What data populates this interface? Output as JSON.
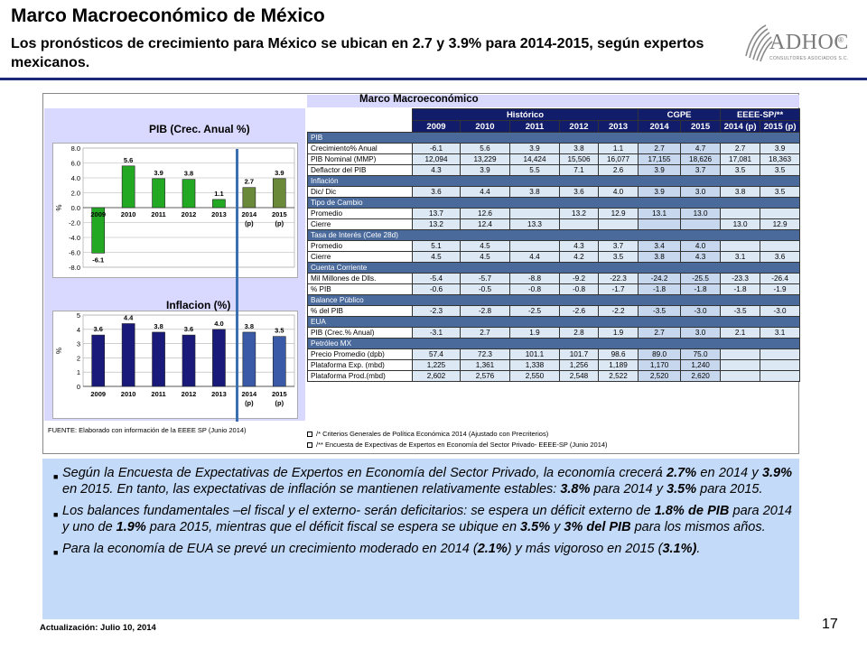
{
  "header": {
    "title": "Marco Macroeconómico de México",
    "subtitle": "Los pronósticos de crecimiento para México se ubican en 2.7 y 3.9% para 2014-2015, según expertos mexicanos."
  },
  "logo": {
    "text": "ADHOC",
    "reg": "®",
    "sub": "CONSULTORES ASOCIADOS S.C."
  },
  "table": {
    "title": "Marco Macroeconómico",
    "group_headers": [
      "Histórico",
      "CGPE",
      "EEEE-SP/**"
    ],
    "years": [
      "2009",
      "2010",
      "2011",
      "2012",
      "2013",
      "2014",
      "2015",
      "2014 (p)",
      "2015 (p)"
    ],
    "sections": [
      {
        "name": "PIB",
        "rows": [
          {
            "label": "Crecimiento% Anual",
            "values": [
              "-6.1",
              "5.6",
              "3.9",
              "3.8",
              "1.1",
              "2.7",
              "4.7",
              "2.7",
              "3.9"
            ]
          },
          {
            "label": "PIB Nominal (MMP)",
            "values": [
              "12,094",
              "13,229",
              "14,424",
              "15,506",
              "16,077",
              "17,155",
              "18,626",
              "17,081",
              "18,363"
            ]
          },
          {
            "label": "Deflactor del PIB",
            "values": [
              "4.3",
              "3.9",
              "5.5",
              "7.1",
              "2.6",
              "3.9",
              "3.7",
              "3.5",
              "3.5"
            ]
          }
        ]
      },
      {
        "name": "Inflación",
        "rows": [
          {
            "label": "Dic/ Dic",
            "values": [
              "3.6",
              "4.4",
              "3.8",
              "3.6",
              "4.0",
              "3.9",
              "3.0",
              "3.8",
              "3.5"
            ]
          }
        ]
      },
      {
        "name": "Tipo de Cambio",
        "rows": [
          {
            "label": "Promedio",
            "values": [
              "13.7",
              "12.6",
              "",
              "13.2",
              "12.9",
              "13.1",
              "13.0",
              "",
              ""
            ]
          },
          {
            "label": "Cierre",
            "values": [
              "13.2",
              "12.4",
              "13.3",
              "",
              "",
              "",
              "",
              "13.0",
              "12.9"
            ]
          }
        ]
      },
      {
        "name": "Tasa de Interés (Cete 28d)",
        "rows": [
          {
            "label": "Promedio",
            "values": [
              "5.1",
              "4.5",
              "",
              "4.3",
              "3.7",
              "3.4",
              "4.0",
              "",
              ""
            ]
          },
          {
            "label": "Cierre",
            "values": [
              "4.5",
              "4.5",
              "4.4",
              "4.2",
              "3.5",
              "3.8",
              "4.3",
              "3.1",
              "3.6"
            ]
          }
        ]
      },
      {
        "name": "Cuenta Corriente",
        "rows": [
          {
            "label": "Mil Millones de Dlls.",
            "values": [
              "-5.4",
              "-5.7",
              "-8.8",
              "-9.2",
              "-22.3",
              "-24.2",
              "-25.5",
              "-23.3",
              "-26.4"
            ]
          },
          {
            "label": "% PIB",
            "values": [
              "-0.6",
              "-0.5",
              "-0.8",
              "-0.8",
              "-1.7",
              "-1.8",
              "-1.8",
              "-1.8",
              "-1.9"
            ]
          }
        ]
      },
      {
        "name": "Balance Público",
        "rows": [
          {
            "label": "% del PIB",
            "values": [
              "-2.3",
              "-2.8",
              "-2.5",
              "-2.6",
              "-2.2",
              "-3.5",
              "-3.0",
              "-3.5",
              "-3.0"
            ]
          }
        ]
      },
      {
        "name": "EUA",
        "rows": [
          {
            "label": "PIB (Crec.% Anual)",
            "values": [
              "-3.1",
              "2.7",
              "1.9",
              "2.8",
              "1.9",
              "2.7",
              "3.0",
              "2.1",
              "3.1"
            ]
          }
        ]
      },
      {
        "name": "Petróleo MX",
        "rows": [
          {
            "label": "Precio Promedio (dpb)",
            "values": [
              "57.4",
              "72.3",
              "101.1",
              "101.7",
              "98.6",
              "89.0",
              "75.0",
              "",
              ""
            ]
          },
          {
            "label": "Plataforma Exp. (mbd)",
            "values": [
              "1,225",
              "1,361",
              "1,338",
              "1,256",
              "1,189",
              "1,170",
              "1,240",
              "",
              ""
            ]
          },
          {
            "label": "Plataforma Prod.(mbd)",
            "values": [
              "2,602",
              "2,576",
              "2,550",
              "2,548",
              "2,522",
              "2,520",
              "2,620",
              "",
              ""
            ]
          }
        ]
      }
    ],
    "fuente": "FUENTE: Elaborado con información de la EEEE SP (Junio 2014)",
    "notes": [
      "/* Criterios Generales de Política Económica 2014 (Ajustado con Precriterios)",
      "/** Encuesta de Expectivas de Expertos en Economía del Sector Privado- EEEE-SP (Junio 2014)"
    ]
  },
  "chart_data": [
    {
      "type": "bar",
      "title": "PIB (Crec. Anual %)",
      "ylabel": "%",
      "categories": [
        "2009",
        "2010",
        "2011",
        "2012",
        "2013",
        "2014\n(p)",
        "2015\n(p)"
      ],
      "values": [
        -6.1,
        5.6,
        3.9,
        3.8,
        1.1,
        2.7,
        3.9
      ],
      "data_labels": [
        "-6.1",
        "5.6",
        "3.9",
        "3.8",
        "1.1",
        "2.7",
        "3.9"
      ],
      "yticks": [
        "8.0",
        "6.0",
        "4.0",
        "2.0",
        "0.0",
        "-2.0",
        "-4.0",
        "-6.0",
        "-8.0"
      ],
      "ylim": [
        -8,
        8
      ],
      "colors": [
        "#22a822",
        "#22a822",
        "#22a822",
        "#22a822",
        "#22a822",
        "#6a8a3a",
        "#6a8a3a"
      ],
      "grid": true
    },
    {
      "type": "bar",
      "title": "Inflacion (%)",
      "ylabel": "%",
      "categories": [
        "2009",
        "2010",
        "2011",
        "2012",
        "2013",
        "2014\n(p)",
        "2015\n(p)"
      ],
      "values": [
        3.6,
        4.4,
        3.8,
        3.6,
        4.0,
        3.8,
        3.5
      ],
      "data_labels": [
        "3.6",
        "4.4",
        "3.8",
        "3.6",
        "4.0",
        "3.8",
        "3.5"
      ],
      "yticks": [
        "5",
        "4",
        "3",
        "2",
        "1",
        "0"
      ],
      "ylim": [
        0,
        5
      ],
      "colors": [
        "#1a1a7a",
        "#1a1a7a",
        "#1a1a7a",
        "#1a1a7a",
        "#1a1a7a",
        "#3a5aa8",
        "#3a5aa8"
      ],
      "grid": true
    }
  ],
  "bullets": [
    [
      {
        "t": "Según la Encuesta de Expectativas de Expertos en Economía del Sector Privado, la economía crecerá ",
        "b": false
      },
      {
        "t": "2.7%",
        "b": true
      },
      {
        "t": " en 2014 y ",
        "b": false
      },
      {
        "t": "3.9%",
        "b": true
      },
      {
        "t": " en 2015. En tanto, las expectativas de inflación se mantienen relativamente estables: ",
        "b": false
      },
      {
        "t": "3.8%",
        "b": true
      },
      {
        "t": " para 2014 y ",
        "b": false
      },
      {
        "t": "3.5%",
        "b": true
      },
      {
        "t": " para 2015.",
        "b": false
      }
    ],
    [
      {
        "t": "Los balances fundamentales –el fiscal y el externo- serán deficitarios: se espera un déficit externo de ",
        "b": false
      },
      {
        "t": "1.8% de PIB",
        "b": true
      },
      {
        "t": "  para 2014 y uno de ",
        "b": false
      },
      {
        "t": "1.9%",
        "b": true
      },
      {
        "t": " para 2015, mientras que el déficit fiscal se espera se ubique en ",
        "b": false
      },
      {
        "t": "3.5%",
        "b": true
      },
      {
        "t": " y ",
        "b": false
      },
      {
        "t": "3% del PIB",
        "b": true
      },
      {
        "t": "  para los mismos años.",
        "b": false
      }
    ],
    [
      {
        "t": "Para la economía de EUA se prevé un crecimiento moderado en 2014 (",
        "b": false
      },
      {
        "t": "2.1%",
        "b": true
      },
      {
        "t": ") y más vigoroso en 2015 (",
        "b": false
      },
      {
        "t": "3.1%)",
        "b": true
      },
      {
        "t": ".",
        "b": false
      }
    ]
  ],
  "footer": {
    "update": "Actualización:  Julio 10, 2014",
    "page": "17"
  }
}
